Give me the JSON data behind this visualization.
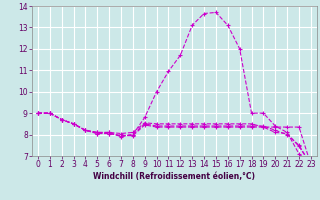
{
  "xlabel": "Windchill (Refroidissement éolien,°C)",
  "bg_color": "#cce8e8",
  "grid_color": "#ffffff",
  "line_color": "#cc00cc",
  "x_min": 0,
  "x_max": 23,
  "y_min": 7,
  "y_max": 14,
  "hours": [
    0,
    1,
    2,
    3,
    4,
    5,
    6,
    7,
    8,
    9,
    10,
    11,
    12,
    13,
    14,
    15,
    16,
    17,
    18,
    19,
    20,
    21,
    22,
    23
  ],
  "arc": [
    9.0,
    9.0,
    8.7,
    8.5,
    8.2,
    8.1,
    8.1,
    7.9,
    8.0,
    8.8,
    10.0,
    10.95,
    11.7,
    13.1,
    13.65,
    13.7,
    13.1,
    12.0,
    9.0,
    9.0,
    8.4,
    8.1,
    7.1,
    6.6
  ],
  "flat1": [
    9.0,
    9.0,
    8.7,
    8.5,
    8.2,
    8.1,
    8.1,
    8.05,
    8.1,
    8.55,
    8.5,
    8.5,
    8.5,
    8.5,
    8.5,
    8.5,
    8.5,
    8.5,
    8.5,
    8.35,
    8.35,
    8.35,
    8.35,
    6.6
  ],
  "flat2": [
    9.0,
    9.0,
    8.7,
    8.5,
    8.2,
    8.05,
    8.05,
    7.95,
    7.95,
    8.45,
    8.35,
    8.35,
    8.35,
    8.35,
    8.35,
    8.35,
    8.35,
    8.35,
    8.35,
    8.35,
    8.1,
    8.05,
    7.45,
    6.6
  ],
  "flat3": [
    9.0,
    9.0,
    8.7,
    8.5,
    8.2,
    8.05,
    8.05,
    7.95,
    8.0,
    8.5,
    8.4,
    8.4,
    8.4,
    8.4,
    8.4,
    8.4,
    8.4,
    8.4,
    8.4,
    8.4,
    8.2,
    8.0,
    7.5,
    6.6
  ],
  "tick_fontsize": 5.5,
  "xlabel_fontsize": 5.5
}
